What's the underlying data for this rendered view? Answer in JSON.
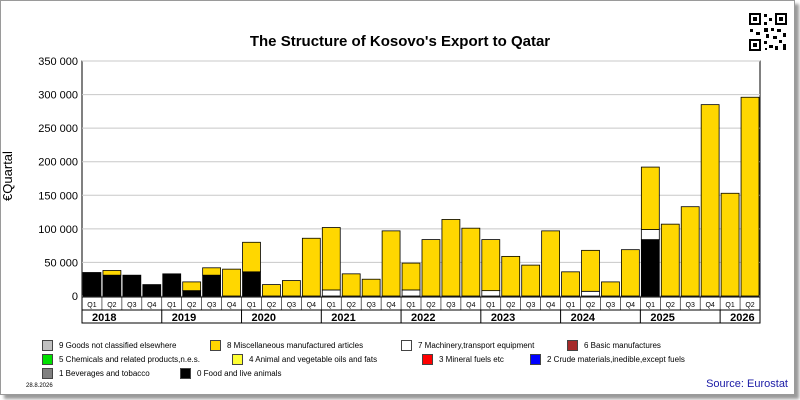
{
  "chart_data": {
    "type": "bar",
    "stacked": true,
    "title": "The Structure of Kosovo's Export to Qatar",
    "ylabel": "€Quartal",
    "ylim": [
      0,
      350000
    ],
    "yticks": [
      0,
      50000,
      100000,
      150000,
      200000,
      250000,
      300000,
      350000
    ],
    "ytick_labels": [
      "0",
      "50 000",
      "100 000",
      "150 000",
      "200 000",
      "250 000",
      "300 000",
      "350 000"
    ],
    "grid": "horizontal",
    "legend_placement": "bottom",
    "years": [
      "2018",
      "2019",
      "2020",
      "2021",
      "2022",
      "2023",
      "2024",
      "2025",
      "2026"
    ],
    "categories": [
      "Q1",
      "Q2",
      "Q3",
      "Q4",
      "Q1",
      "Q2",
      "Q3",
      "Q4",
      "Q1",
      "Q2",
      "Q3",
      "Q4",
      "Q1",
      "Q2",
      "Q3",
      "Q4",
      "Q1",
      "Q2",
      "Q3",
      "Q4",
      "Q1",
      "Q2",
      "Q3",
      "Q4",
      "Q1",
      "Q2",
      "Q3",
      "Q4",
      "Q1",
      "Q2",
      "Q3",
      "Q4",
      "Q1",
      "Q2"
    ],
    "series": [
      {
        "name": "0 Food and live animals",
        "color": "#000000",
        "values": [
          35000,
          31000,
          31000,
          17000,
          33000,
          8000,
          31000,
          0,
          36000,
          0,
          0,
          0,
          0,
          0,
          0,
          0,
          0,
          0,
          0,
          0,
          0,
          0,
          0,
          0,
          0,
          0,
          0,
          0,
          84000,
          0,
          0,
          0,
          0,
          0
        ]
      },
      {
        "name": "7 Machinery,transport equipment",
        "color": "#ffffff",
        "values": [
          0,
          0,
          0,
          0,
          0,
          0,
          0,
          0,
          0,
          0,
          0,
          0,
          9000,
          0,
          0,
          0,
          9000,
          0,
          0,
          0,
          8000,
          0,
          0,
          0,
          0,
          7000,
          0,
          0,
          15000,
          0,
          0,
          0,
          0,
          0
        ]
      },
      {
        "name": "8 Miscellaneous manufactured articles",
        "color": "#ffd700",
        "values": [
          0,
          7000,
          0,
          0,
          0,
          13000,
          11000,
          40000,
          44000,
          17000,
          23000,
          86000,
          93000,
          33000,
          25000,
          97000,
          40000,
          84000,
          114000,
          101000,
          76000,
          59000,
          46000,
          97000,
          36000,
          61000,
          21000,
          69000,
          93000,
          107000,
          133000,
          285000,
          153000,
          296000
        ]
      }
    ]
  },
  "legend": [
    {
      "label": "9 Goods not classified elsewhere",
      "color": "#c0c0c0"
    },
    {
      "label": "8 Miscellaneous manufactured articles",
      "color": "#ffd700"
    },
    {
      "label": "7 Machinery,transport equipment",
      "color": "#ffffff"
    },
    {
      "label": "6 Basic manufactures",
      "color": "#a52a2a"
    },
    {
      "label": "5 Chemicals and related products,n.e.s.",
      "color": "#00e000"
    },
    {
      "label": "4 Animal and vegetable oils and fats",
      "color": "#ffff33"
    },
    {
      "label": "3 Mineral fuels etc",
      "color": "#ff0000"
    },
    {
      "label": "2 Crude materials,inedible,except fuels",
      "color": "#0000ff"
    },
    {
      "label": "1 Beverages and tobacco",
      "color": "#808080"
    },
    {
      "label": "0 Food and live animals",
      "color": "#000000"
    }
  ],
  "date_stamp": "28.8.2026",
  "source": "Source: Eurostat"
}
